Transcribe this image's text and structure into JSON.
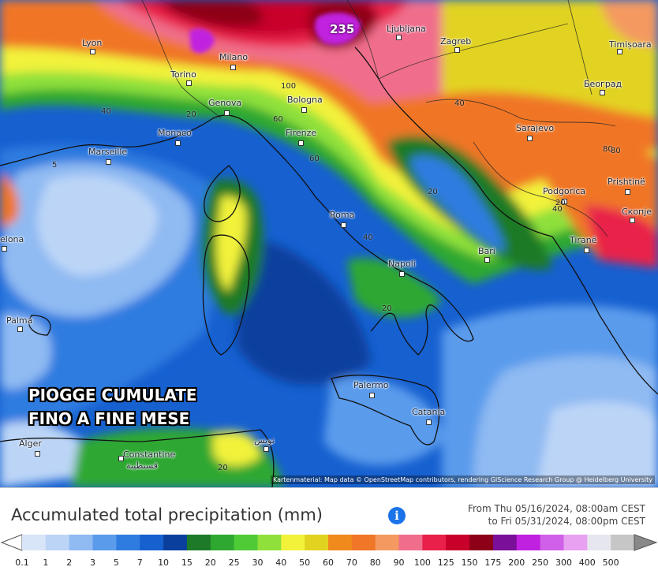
{
  "overlay": {
    "line1": "PIOGGE CUMULATE",
    "line2": "FINO A FINE MESE"
  },
  "max_value_label": "235",
  "attribution": "Kartenmaterial: Map data © OpenStreetMap contributors, rendering GIScience Research Group @ Heidelberg University",
  "cities": [
    {
      "name": "Lyon"
    },
    {
      "name": "Torino"
    },
    {
      "name": "Milano"
    },
    {
      "name": "Ljubljana"
    },
    {
      "name": "Zagreb"
    },
    {
      "name": "Timișoara"
    },
    {
      "name": "Genova"
    },
    {
      "name": "Bologna"
    },
    {
      "name": "Београд"
    },
    {
      "name": "Monaco"
    },
    {
      "name": "Firenze"
    },
    {
      "name": "Sarajevo"
    },
    {
      "name": "Marseille"
    },
    {
      "name": "Podgorica"
    },
    {
      "name": "Prishtinë"
    },
    {
      "name": "Roma"
    },
    {
      "name": "Скопје"
    },
    {
      "name": "elona"
    },
    {
      "name": "Tiranë"
    },
    {
      "name": "Bari"
    },
    {
      "name": "Napoli"
    },
    {
      "name": "Palma"
    },
    {
      "name": "Palermo"
    },
    {
      "name": "Catania"
    },
    {
      "name": "Alger"
    },
    {
      "name": "Constantine"
    },
    {
      "name": "قسنطينة"
    },
    {
      "name": "تونس"
    }
  ],
  "isolines": [
    "5",
    "40",
    "100",
    "60",
    "80",
    "60",
    "40",
    "20",
    "20",
    "40",
    "20",
    "20",
    "40",
    "80",
    "20"
  ],
  "legend": {
    "title": "Accumulated total precipitation (mm)",
    "info_icon": "info-icon",
    "date_from": "From Thu 05/16/2024, 08:00am CEST",
    "date_to": "to Fri 05/31/2024, 08:00pm CEST",
    "ticks": [
      "0.1",
      "1",
      "2",
      "3",
      "5",
      "7",
      "10",
      "15",
      "20",
      "25",
      "30",
      "40",
      "50",
      "60",
      "70",
      "80",
      "90",
      "100",
      "125",
      "150",
      "175",
      "200",
      "250",
      "300",
      "400",
      "500"
    ],
    "colors": [
      "#d8e4f7",
      "#bcd5f7",
      "#8fbaf2",
      "#5a9bec",
      "#2f7ce0",
      "#1660d0",
      "#0a3f9e",
      "#1c7a28",
      "#2ea831",
      "#4fcb38",
      "#8fe03a",
      "#f2f23a",
      "#e2d320",
      "#f08a1c",
      "#f07628",
      "#f49a60",
      "#f06e8c",
      "#e8204a",
      "#c8002a",
      "#8e0018",
      "#7a0f9a",
      "#c020e0",
      "#d060e8",
      "#e8a0f0",
      "#e6e6ee",
      "#c6c6c6"
    ]
  }
}
